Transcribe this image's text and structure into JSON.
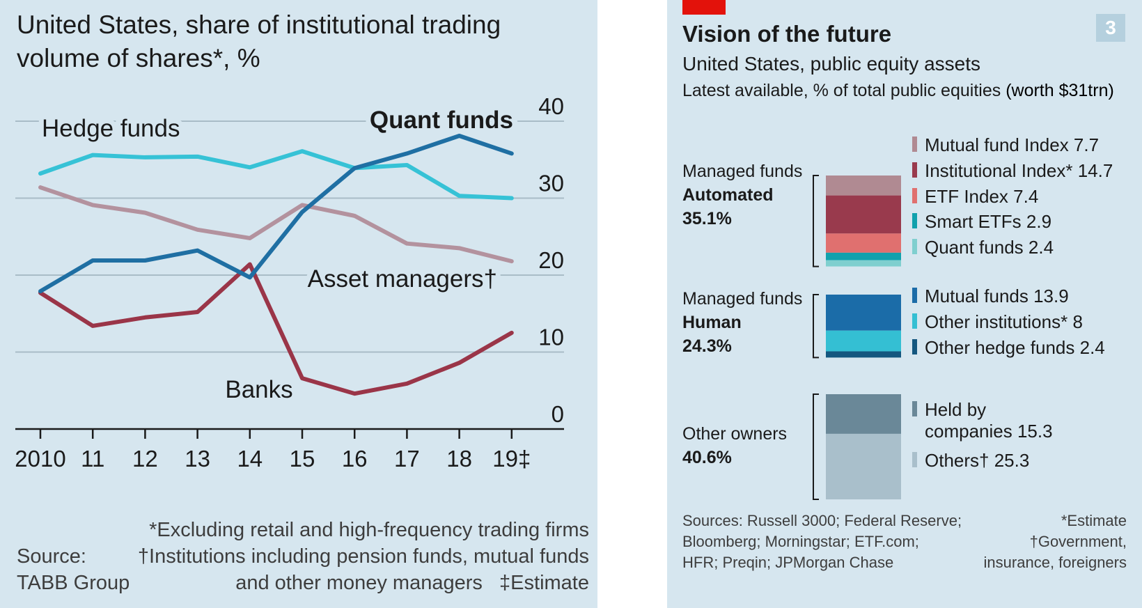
{
  "left": {
    "title": "United States, share of institutional trading volume of shares*, %",
    "source_label": "Source:",
    "source_name": "TABB Group",
    "footnote1": "*Excluding retail and high-frequency trading firms",
    "footnote2": "†Institutions including pension funds, mutual funds",
    "footnote3": "and other money managers",
    "footnote4": "‡Estimate"
  },
  "right": {
    "number_badge": "3",
    "accent_color": "#e3120b",
    "title": "Vision of the future",
    "subtitle": "United States, public equity assets",
    "subtitle2_prefix": "Latest available, % of total public equities ",
    "subtitle2_bold": "(worth $31trn)",
    "sources_line1": "Sources: Russell 3000; Federal Reserve;",
    "sources_line2": "Bloomberg; Morningstar; ETF.com;",
    "sources_line3": "HFR; Preqin; JPMorgan Chase",
    "note1": "*Estimate",
    "note2": "†Government,",
    "note3": "insurance, foreigners"
  },
  "chart_data": [
    {
      "type": "line",
      "title": "United States, share of institutional trading volume of shares*, %",
      "x": [
        "2010",
        "11",
        "12",
        "13",
        "14",
        "15",
        "16",
        "17",
        "18",
        "19‡"
      ],
      "ylim": [
        0,
        40
      ],
      "yticks": [
        0,
        10,
        20,
        30,
        40
      ],
      "grid": true,
      "series": [
        {
          "name": "Hedge funds",
          "color": "#36c2d6",
          "values": [
            33.2,
            35.6,
            35.3,
            35.4,
            34.0,
            36.1,
            33.9,
            34.3,
            30.3,
            30.0
          ]
        },
        {
          "name": "Quant funds",
          "color": "#1f6fa3",
          "values": [
            17.9,
            21.9,
            21.9,
            23.2,
            19.7,
            28.2,
            33.9,
            35.8,
            38.1,
            35.8
          ]
        },
        {
          "name": "Asset managers†",
          "color": "#b3929e",
          "values": [
            31.4,
            29.1,
            28.1,
            25.9,
            24.8,
            29.1,
            27.7,
            24.1,
            23.5,
            21.8
          ]
        },
        {
          "name": "Banks",
          "color": "#9a3548",
          "values": [
            17.7,
            13.4,
            14.5,
            15.2,
            21.4,
            6.6,
            4.6,
            5.9,
            8.6,
            12.5
          ]
        }
      ]
    },
    {
      "type": "bar",
      "stacked": true,
      "title": "Vision of the future",
      "subtitle": "United States, public equity assets",
      "unit": "Latest available, % of total public equities (worth $31trn)",
      "groups": [
        {
          "name_line1": "Managed funds",
          "name_line2": "Automated",
          "total": "35.1%",
          "segments": [
            {
              "label": "Mutual fund Index",
              "value": 7.7,
              "color": "#b08a92"
            },
            {
              "label": "Institutional Index*",
              "value": 14.7,
              "color": "#993a4d"
            },
            {
              "label": "ETF Index",
              "value": 7.4,
              "color": "#e0706f"
            },
            {
              "label": "Smart ETFs",
              "value": 2.9,
              "color": "#11a1ad"
            },
            {
              "label": "Quant funds",
              "value": 2.4,
              "color": "#7fcfcf"
            }
          ]
        },
        {
          "name_line1": "Managed funds",
          "name_line2": "Human",
          "total": "24.3%",
          "segments": [
            {
              "label": "Mutual funds",
              "value": 13.9,
              "color": "#1b6ca8"
            },
            {
              "label": "Other institutions*",
              "value": 8.0,
              "color": "#34bfd3"
            },
            {
              "label": "Other hedge funds",
              "value": 2.4,
              "color": "#14577f"
            }
          ]
        },
        {
          "name_line1": "Other owners",
          "name_line2": "",
          "total": "40.6%",
          "segments": [
            {
              "label": "Held by companies",
              "label_line1": "Held by",
              "label_line2": "companies",
              "value": 15.3,
              "color": "#6a8898"
            },
            {
              "label": "Others†",
              "value": 25.3,
              "color": "#a9bfcb"
            }
          ]
        }
      ]
    }
  ]
}
